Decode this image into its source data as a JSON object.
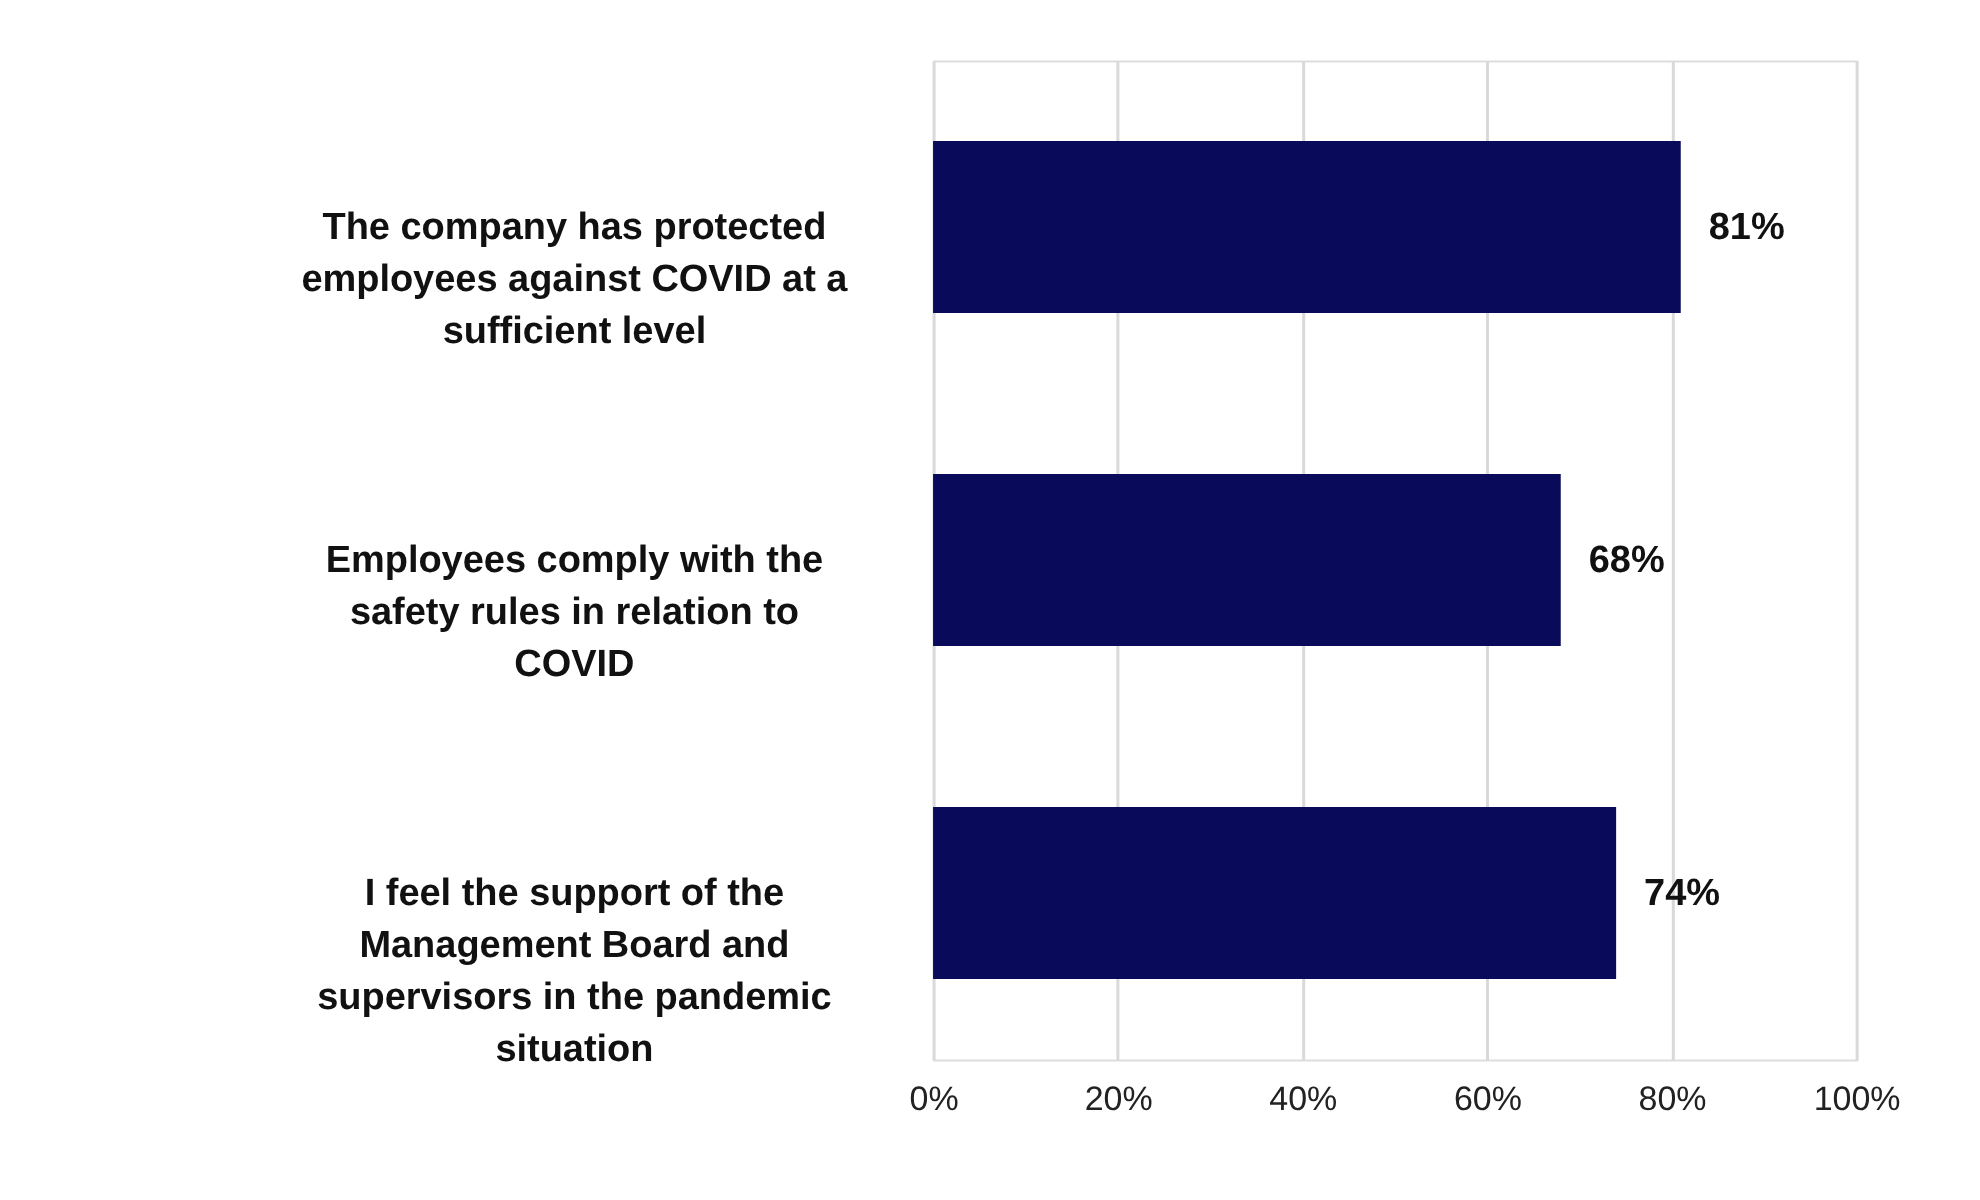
{
  "chart_data": {
    "type": "bar",
    "orientation": "horizontal",
    "categories": [
      "The company has protected employees against COVID at a sufficient level",
      "Employees comply with the safety rules in relation to COVID",
      "I feel the support of the Management Board and supervisors in the pandemic situation"
    ],
    "values": [
      81,
      68,
      74
    ],
    "color": "#0a0a5a",
    "value_labels": [
      "81%",
      "68%",
      "74%"
    ],
    "xlim": [
      0,
      100
    ],
    "xticks": [
      {
        "value": 0,
        "label": "0%"
      },
      {
        "value": 20,
        "label": "20%"
      },
      {
        "value": 40,
        "label": "40%"
      },
      {
        "value": 60,
        "label": "60%"
      },
      {
        "value": 80,
        "label": "80%"
      },
      {
        "value": 100,
        "label": "100%"
      }
    ],
    "grid": "x"
  }
}
